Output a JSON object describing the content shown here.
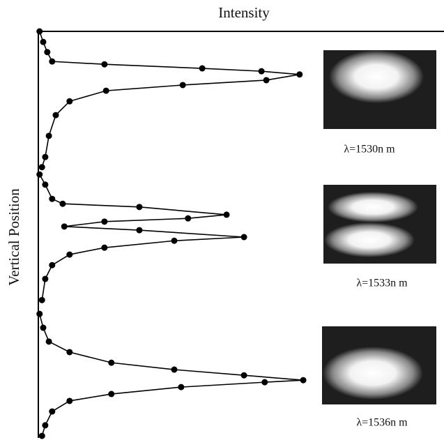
{
  "chart_data": {
    "type": "line",
    "x_label": "Intensity",
    "y_label": "Vertical Position",
    "xlim": [
      0,
      100
    ],
    "ylim": [
      0,
      100
    ],
    "color": "#000000",
    "series": [
      {
        "x": [
          0.3,
          1.2,
          2.2,
          3.4,
          16.3,
          40.4,
          55.0,
          64.4,
          56.2,
          35.6,
          16.7,
          7.7,
          4.3,
          2.6,
          1.7,
          0.9
        ],
        "values": [
          100.0,
          97.4,
          94.9,
          92.6,
          91.9,
          90.9,
          90.2,
          89.4,
          88.0,
          86.8,
          85.4,
          82.8,
          79.4,
          74.3,
          69.1,
          66.6
        ]
      },
      {
        "x": [
          0.3,
          1.7,
          3.4,
          6.0,
          24.9,
          46.4,
          36.9,
          16.3,
          6.4,
          24.9,
          50.7,
          33.5,
          16.3,
          7.7,
          3.4,
          1.7,
          0.9
        ],
        "values": [
          64.8,
          62.3,
          58.8,
          57.6,
          56.8,
          54.9,
          54.0,
          53.2,
          52.0,
          51.1,
          49.4,
          48.5,
          46.8,
          45.1,
          42.5,
          39.1,
          33.9
        ]
      },
      {
        "x": [
          0.3,
          1.2,
          2.6,
          7.7,
          18.0,
          33.5,
          50.7,
          65.3,
          55.8,
          35.2,
          18.0,
          7.7,
          3.4,
          1.7,
          0.9
        ],
        "values": [
          30.5,
          27.1,
          23.7,
          21.1,
          18.5,
          16.8,
          15.4,
          14.2,
          13.7,
          12.5,
          10.8,
          9.1,
          6.5,
          3.1,
          0.5
        ]
      }
    ],
    "annotations": [
      "λ=1530n m",
      "λ=1533n m",
      "λ=1536n m"
    ]
  }
}
